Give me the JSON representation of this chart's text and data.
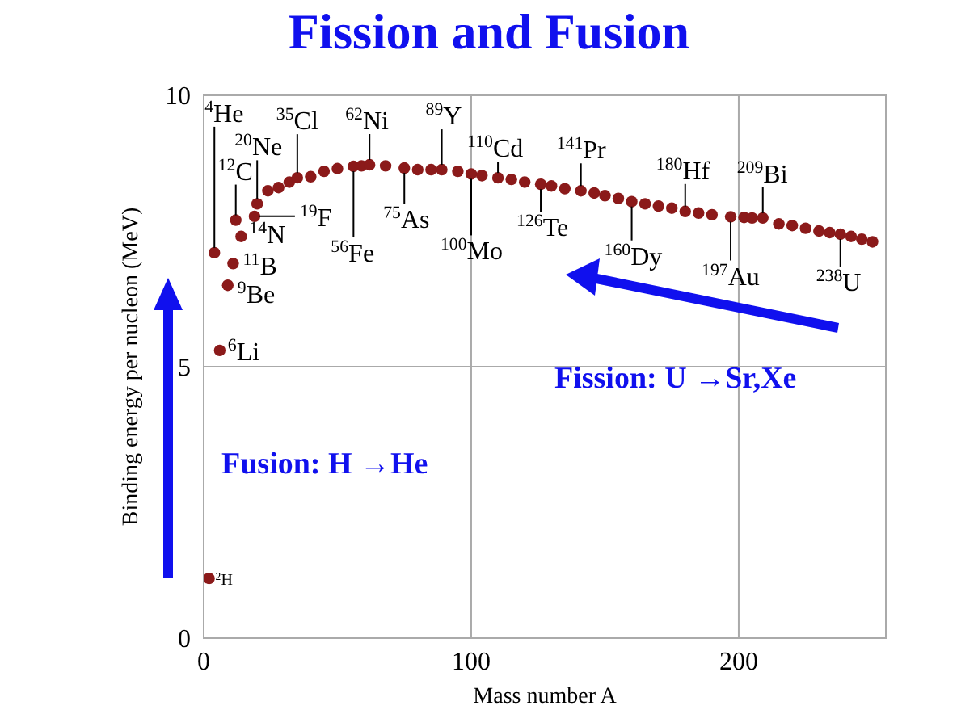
{
  "chart_data": {
    "type": "scatter",
    "title": "Fission and Fusion",
    "xlabel": "Mass number A",
    "ylabel": "Binding energy per nucleon (MeV)",
    "x": [
      2,
      4,
      6,
      9,
      11,
      12,
      14,
      19,
      20,
      24,
      28,
      32,
      35,
      40,
      45,
      50,
      56,
      59,
      62,
      68,
      75,
      80,
      85,
      89,
      95,
      100,
      104,
      110,
      115,
      120,
      126,
      130,
      135,
      141,
      146,
      150,
      155,
      160,
      165,
      170,
      175,
      180,
      185,
      190,
      197,
      202,
      205,
      209,
      215,
      220,
      225,
      230,
      234,
      238,
      242,
      246,
      250
    ],
    "series": [
      {
        "color": "#8b1a1a",
        "values": [
          1.1,
          7.1,
          5.3,
          6.5,
          6.9,
          7.7,
          7.4,
          7.77,
          8.0,
          8.24,
          8.3,
          8.4,
          8.48,
          8.5,
          8.6,
          8.65,
          8.69,
          8.7,
          8.72,
          8.7,
          8.66,
          8.63,
          8.63,
          8.63,
          8.6,
          8.55,
          8.52,
          8.48,
          8.45,
          8.4,
          8.36,
          8.33,
          8.28,
          8.24,
          8.2,
          8.15,
          8.1,
          8.04,
          8.0,
          7.96,
          7.92,
          7.86,
          7.83,
          7.8,
          7.76,
          7.75,
          7.74,
          7.74,
          7.63,
          7.6,
          7.55,
          7.5,
          7.47,
          7.44,
          7.4,
          7.35,
          7.3
        ]
      }
    ],
    "xlim": [
      0,
      255
    ],
    "xticks": [
      0,
      100,
      200
    ],
    "ylim": [
      0,
      10
    ],
    "yticks": [
      0,
      5,
      10
    ],
    "grid": true,
    "marker": "circle",
    "annotations": [
      {
        "text": "$^{4}$He",
        "x": 4,
        "y": 7.1
      },
      {
        "text": "$^{20}$Ne",
        "x": 20,
        "y": 8.0
      },
      {
        "text": "$^{12}$C",
        "x": 12,
        "y": 7.7
      },
      {
        "text": "$^{35}$Cl",
        "x": 35,
        "y": 8.48
      },
      {
        "text": "$^{62}$Ni",
        "x": 62,
        "y": 8.72
      },
      {
        "text": "$^{89}$Y",
        "x": 89,
        "y": 8.63
      },
      {
        "text": "$^{110}$Cd",
        "x": 110,
        "y": 8.48
      },
      {
        "text": "$^{141}$Pr",
        "x": 141,
        "y": 8.24
      },
      {
        "text": "$^{180}$Hf",
        "x": 180,
        "y": 7.86
      },
      {
        "text": "$^{209}$Bi",
        "x": 209,
        "y": 7.74
      },
      {
        "text": "$^{11}$B",
        "x": 11,
        "y": 6.9
      },
      {
        "text": "$^{9}$Be",
        "x": 9,
        "y": 6.5
      },
      {
        "text": "$^{14}$N",
        "x": 14,
        "y": 7.4
      },
      {
        "text": "$^{19}$F",
        "x": 19,
        "y": 7.77
      },
      {
        "text": "$^{6}$Li",
        "x": 6,
        "y": 5.3
      },
      {
        "text": "$^{2}$H",
        "x": 2,
        "y": 1.1
      },
      {
        "text": "$^{56}$Fe",
        "x": 56,
        "y": 8.69
      },
      {
        "text": "$^{75}$As",
        "x": 75,
        "y": 8.66
      },
      {
        "text": "$^{100}$Mo",
        "x": 100,
        "y": 8.55
      },
      {
        "text": "$^{126}$Te",
        "x": 126,
        "y": 8.36
      },
      {
        "text": "$^{160}$Dy",
        "x": 160,
        "y": 8.04
      },
      {
        "text": "$^{197}$Au",
        "x": 197,
        "y": 7.76
      },
      {
        "text": "$^{238}$U",
        "x": 238,
        "y": 7.44
      },
      "Fusion: H →He",
      "Fission: U →Sr,Xe"
    ]
  }
}
